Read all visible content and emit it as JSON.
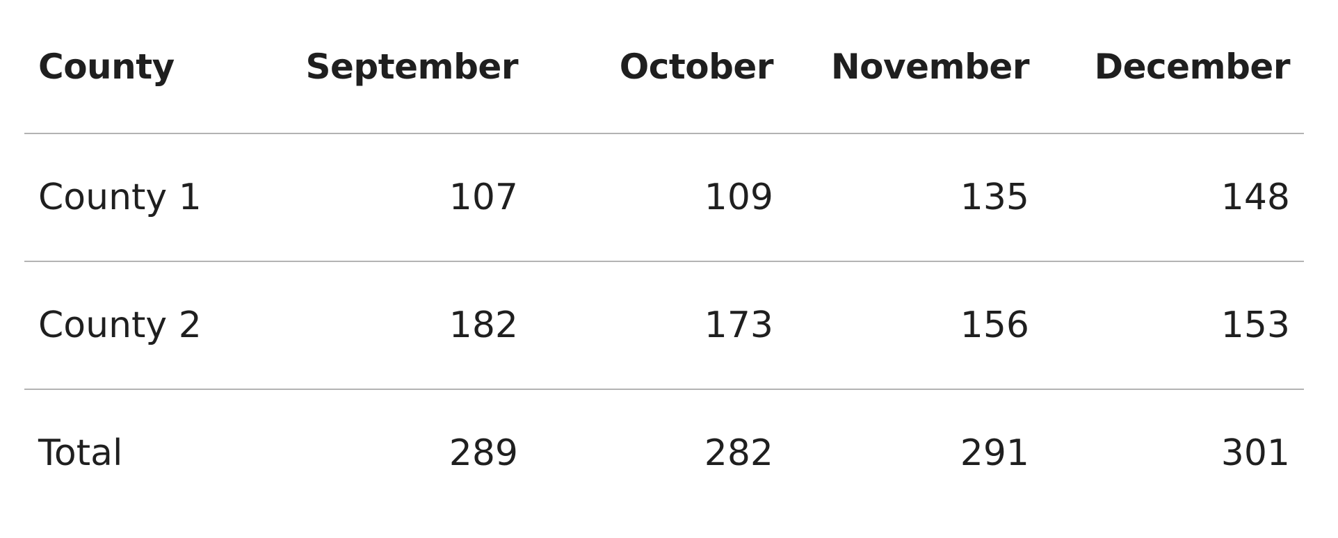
{
  "table": {
    "headers": [
      "County",
      "September",
      "October",
      "November",
      "December"
    ],
    "rows": [
      [
        "County 1",
        "107",
        "109",
        "135",
        "148"
      ],
      [
        "County 2",
        "182",
        "173",
        "156",
        "153"
      ],
      [
        "Total",
        "289",
        "282",
        "291",
        "301"
      ]
    ]
  }
}
